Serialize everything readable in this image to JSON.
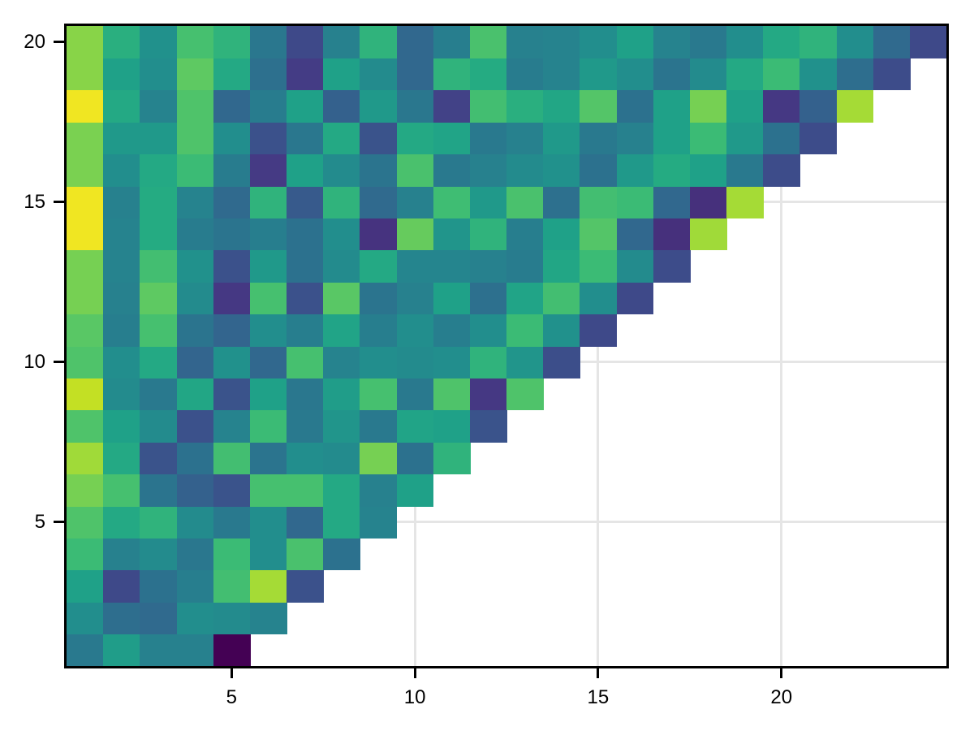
{
  "figure": {
    "background_color": "#ffffff",
    "plot_border_color": "#000000",
    "grid_color": "#e5e5e5",
    "tick_color": "#000000",
    "tick_label_color": "#000000"
  },
  "axes": {
    "x": {
      "min": 0.5,
      "max": 24.5,
      "ticks": [
        5,
        10,
        15,
        20
      ]
    },
    "y": {
      "min": 0.5,
      "max": 20.5,
      "ticks": [
        5,
        10,
        15,
        20
      ]
    }
  },
  "chart_data": {
    "type": "heatmap",
    "title": "",
    "xlabel": "",
    "ylabel": "",
    "colormap": "viridis",
    "n_cols": 24,
    "n_rows": 20,
    "shape": "staircase lower-triangle: bottom row y=1 filled for x=1..5, each higher row adds one column, top row y=20 filled for x=1..24 (x <= y+4)",
    "value_scale": "normalized 0-1 colormap position, estimated from rendered pixel colors",
    "rows_bottom_to_top": [
      [
        0.39,
        0.51,
        0.42,
        0.42,
        0.0
      ],
      [
        0.47,
        0.34,
        0.31,
        0.47,
        0.46,
        0.43
      ],
      [
        0.52,
        0.2,
        0.36,
        0.41,
        0.62,
        0.84,
        0.23
      ],
      [
        0.6,
        0.42,
        0.46,
        0.38,
        0.6,
        0.47,
        0.64,
        0.36
      ],
      [
        0.65,
        0.55,
        0.58,
        0.46,
        0.39,
        0.47,
        0.3,
        0.55,
        0.43
      ],
      [
        0.74,
        0.63,
        0.37,
        0.28,
        0.24,
        0.63,
        0.63,
        0.55,
        0.42,
        0.52
      ],
      [
        0.83,
        0.55,
        0.24,
        0.36,
        0.62,
        0.37,
        0.47,
        0.46,
        0.74,
        0.36,
        0.58
      ],
      [
        0.65,
        0.52,
        0.46,
        0.23,
        0.43,
        0.6,
        0.39,
        0.49,
        0.39,
        0.53,
        0.52,
        0.24
      ],
      [
        0.88,
        0.46,
        0.39,
        0.54,
        0.24,
        0.52,
        0.38,
        0.51,
        0.63,
        0.39,
        0.65,
        0.13,
        0.65
      ],
      [
        0.65,
        0.47,
        0.55,
        0.29,
        0.48,
        0.3,
        0.63,
        0.43,
        0.47,
        0.46,
        0.47,
        0.58,
        0.49,
        0.22
      ],
      [
        0.67,
        0.41,
        0.63,
        0.37,
        0.29,
        0.47,
        0.41,
        0.53,
        0.41,
        0.47,
        0.41,
        0.47,
        0.6,
        0.48,
        0.2
      ],
      [
        0.74,
        0.42,
        0.68,
        0.46,
        0.13,
        0.63,
        0.23,
        0.67,
        0.37,
        0.42,
        0.52,
        0.35,
        0.53,
        0.62,
        0.47,
        0.2
      ],
      [
        0.74,
        0.43,
        0.62,
        0.48,
        0.23,
        0.5,
        0.36,
        0.46,
        0.55,
        0.44,
        0.44,
        0.42,
        0.4,
        0.54,
        0.6,
        0.46,
        0.21
      ],
      [
        0.97,
        0.43,
        0.56,
        0.4,
        0.37,
        0.41,
        0.36,
        0.47,
        0.1,
        0.7,
        0.49,
        0.58,
        0.41,
        0.52,
        0.66,
        0.3,
        0.08,
        0.83
      ],
      [
        0.97,
        0.42,
        0.56,
        0.43,
        0.31,
        0.58,
        0.26,
        0.58,
        0.31,
        0.42,
        0.61,
        0.5,
        0.64,
        0.35,
        0.62,
        0.6,
        0.3,
        0.08,
        0.84
      ],
      [
        0.75,
        0.47,
        0.55,
        0.6,
        0.4,
        0.14,
        0.52,
        0.46,
        0.37,
        0.64,
        0.39,
        0.42,
        0.46,
        0.48,
        0.36,
        0.5,
        0.56,
        0.52,
        0.39,
        0.21
      ],
      [
        0.75,
        0.5,
        0.5,
        0.65,
        0.47,
        0.23,
        0.38,
        0.55,
        0.24,
        0.55,
        0.53,
        0.39,
        0.42,
        0.5,
        0.39,
        0.42,
        0.52,
        0.6,
        0.5,
        0.36,
        0.21
      ],
      [
        0.97,
        0.55,
        0.43,
        0.65,
        0.3,
        0.4,
        0.52,
        0.28,
        0.5,
        0.38,
        0.17,
        0.62,
        0.57,
        0.54,
        0.66,
        0.36,
        0.52,
        0.74,
        0.52,
        0.13,
        0.28,
        0.84
      ],
      [
        0.78,
        0.52,
        0.47,
        0.68,
        0.55,
        0.35,
        0.15,
        0.52,
        0.46,
        0.3,
        0.58,
        0.56,
        0.4,
        0.43,
        0.5,
        0.47,
        0.37,
        0.46,
        0.55,
        0.6,
        0.48,
        0.34,
        0.21
      ],
      [
        0.78,
        0.57,
        0.48,
        0.63,
        0.58,
        0.38,
        0.2,
        0.42,
        0.58,
        0.3,
        0.41,
        0.64,
        0.42,
        0.43,
        0.47,
        0.52,
        0.43,
        0.39,
        0.47,
        0.55,
        0.58,
        0.47,
        0.31,
        0.2
      ]
    ],
    "viridis_stops": [
      [
        0.0,
        "#440154"
      ],
      [
        0.08,
        "#46307c"
      ],
      [
        0.14,
        "#453a84"
      ],
      [
        0.2,
        "#3e4989"
      ],
      [
        0.24,
        "#3a538b"
      ],
      [
        0.3,
        "#31688e"
      ],
      [
        0.36,
        "#2c718e"
      ],
      [
        0.4,
        "#287c8e"
      ],
      [
        0.44,
        "#25858e"
      ],
      [
        0.48,
        "#21918c"
      ],
      [
        0.52,
        "#1fa188"
      ],
      [
        0.56,
        "#25ab82"
      ],
      [
        0.6,
        "#3bbb75"
      ],
      [
        0.64,
        "#4ac16d"
      ],
      [
        0.68,
        "#5ec962"
      ],
      [
        0.75,
        "#7ad151"
      ],
      [
        0.84,
        "#a5db36"
      ],
      [
        0.9,
        "#d2e21b"
      ],
      [
        1.0,
        "#fde725"
      ]
    ]
  }
}
